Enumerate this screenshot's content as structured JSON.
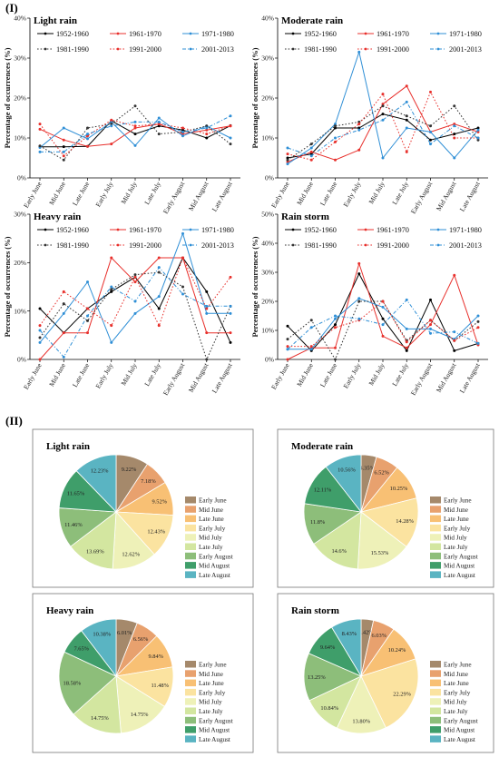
{
  "section_labels": {
    "part1": "(I)",
    "part2": "(II)"
  },
  "chart_data": [
    {
      "type": "line",
      "title": "Light rain",
      "ylabel": "Percentage of occurrences (%)",
      "ylim": [
        0,
        40
      ],
      "yticks": [
        "0%",
        "10%",
        "20%",
        "30%",
        "40%"
      ],
      "categories": [
        "Early June",
        "Mid June",
        "Late June",
        "Early July",
        "Mid July",
        "Late July",
        "Early August",
        "Mid August",
        "Late August"
      ],
      "legend": "top",
      "series": [
        {
          "name": "1952-1960",
          "color": "#000000",
          "dash": "solid",
          "values": [
            7.8,
            7.8,
            7.9,
            14.3,
            11.0,
            13.0,
            12.0,
            10.0,
            13.1
          ]
        },
        {
          "name": "1961-1970",
          "color": "#e8302c",
          "dash": "solid",
          "values": [
            12.2,
            9.5,
            7.9,
            8.5,
            12.5,
            13.5,
            11.0,
            12.0,
            13.0
          ]
        },
        {
          "name": "1971-1980",
          "color": "#2f8fd6",
          "dash": "solid",
          "values": [
            7.6,
            12.5,
            9.8,
            14.0,
            8.1,
            15.0,
            10.5,
            13.0,
            10.0
          ]
        },
        {
          "name": "1981-1990",
          "color": "#333333",
          "dash": "dot",
          "values": [
            8.0,
            4.5,
            12.5,
            13.5,
            18.0,
            11.0,
            11.5,
            13.0,
            8.5
          ]
        },
        {
          "name": "1991-2000",
          "color": "#e8302c",
          "dash": "dot",
          "values": [
            13.5,
            5.5,
            10.5,
            14.5,
            13.0,
            13.5,
            12.5,
            11.0,
            13.0
          ]
        },
        {
          "name": "2001-2013",
          "color": "#2f8fd6",
          "dash": "dashdot",
          "values": [
            6.5,
            6.5,
            11.0,
            13.0,
            14.0,
            14.0,
            11.5,
            12.5,
            15.5
          ]
        }
      ]
    },
    {
      "type": "line",
      "title": "Moderate rain",
      "ylabel": "Percentage of occurrences (%)",
      "ylim": [
        0,
        40
      ],
      "yticks": [
        "0%",
        "10%",
        "20%",
        "30%",
        "40%"
      ],
      "categories": [
        "Early June",
        "Mid June",
        "Late June",
        "Early July",
        "Mid July",
        "Late July",
        "Early August",
        "Mid August",
        "Late August"
      ],
      "legend": "top",
      "series": [
        {
          "name": "1952-1960",
          "color": "#000000",
          "dash": "solid",
          "values": [
            5.0,
            6.0,
            12.5,
            12.5,
            16.0,
            14.5,
            9.5,
            11.0,
            12.5
          ]
        },
        {
          "name": "1961-1970",
          "color": "#e8302c",
          "dash": "solid",
          "values": [
            4.0,
            6.5,
            4.5,
            7.0,
            18.5,
            23.0,
            11.5,
            13.5,
            11.5
          ]
        },
        {
          "name": "1971-1980",
          "color": "#2f8fd6",
          "dash": "solid",
          "values": [
            3.5,
            7.5,
            13.5,
            31.5,
            5.0,
            12.5,
            11.5,
            5.0,
            12.0
          ]
        },
        {
          "name": "1981-1990",
          "color": "#333333",
          "dash": "dot",
          "values": [
            4.5,
            8.5,
            13.0,
            14.0,
            18.0,
            15.5,
            13.0,
            18.0,
            9.5
          ]
        },
        {
          "name": "1991-2000",
          "color": "#e8302c",
          "dash": "dot",
          "values": [
            6.0,
            4.5,
            9.0,
            13.5,
            21.0,
            6.5,
            21.5,
            10.0,
            10.0
          ]
        },
        {
          "name": "2001-2013",
          "color": "#2f8fd6",
          "dash": "dashdot",
          "values": [
            7.5,
            5.5,
            10.0,
            12.0,
            14.5,
            19.0,
            8.5,
            13.0,
            10.0
          ]
        }
      ]
    },
    {
      "type": "line",
      "title": "Heavy rain",
      "ylabel": "Percentage of occurrences (%)",
      "ylim": [
        0,
        30
      ],
      "yticks": [
        "0%",
        "10%",
        "20%",
        "30%"
      ],
      "categories": [
        "Early June",
        "Mid June",
        "Late June",
        "Early July",
        "Mid July",
        "Late July",
        "Early August",
        "Mid August",
        "Late August"
      ],
      "legend": "top",
      "series": [
        {
          "name": "1952-1960",
          "color": "#000000",
          "dash": "solid",
          "values": [
            10.5,
            5.5,
            10.5,
            14.0,
            17.0,
            10.5,
            21.0,
            14.0,
            3.5
          ]
        },
        {
          "name": "1961-1970",
          "color": "#e8302c",
          "dash": "solid",
          "values": [
            0.0,
            5.5,
            5.5,
            21.0,
            16.0,
            21.0,
            21.0,
            5.5,
            5.5
          ]
        },
        {
          "name": "1971-1980",
          "color": "#2f8fd6",
          "dash": "solid",
          "values": [
            3.5,
            9.5,
            16.0,
            3.5,
            9.5,
            13.0,
            26.0,
            9.5,
            9.5
          ]
        },
        {
          "name": "1981-1990",
          "color": "#333333",
          "dash": "dot",
          "values": [
            4.5,
            11.5,
            8.0,
            14.5,
            17.5,
            18.0,
            15.0,
            0.0,
            11.0
          ]
        },
        {
          "name": "1991-2000",
          "color": "#e8302c",
          "dash": "dot",
          "values": [
            7.0,
            14.0,
            10.5,
            7.0,
            17.0,
            7.0,
            21.0,
            10.5,
            17.0
          ]
        },
        {
          "name": "2001-2013",
          "color": "#2f8fd6",
          "dash": "dashdot",
          "values": [
            6.0,
            0.5,
            9.0,
            15.0,
            12.0,
            19.0,
            13.5,
            11.0,
            11.0
          ]
        }
      ]
    },
    {
      "type": "line",
      "title": "Rain storm",
      "ylabel": "Percentage of occurrences (%)",
      "ylim": [
        0,
        50
      ],
      "yticks": [
        "0%",
        "10%",
        "20%",
        "30%",
        "40%",
        "50%"
      ],
      "categories": [
        "Early June",
        "Mid June",
        "Late June",
        "Early July",
        "Mid July",
        "Late July",
        "Early August",
        "Mid August",
        "Late August"
      ],
      "legend": "top",
      "series": [
        {
          "name": "1952-1960",
          "color": "#000000",
          "dash": "solid",
          "values": [
            11.5,
            3.0,
            12.0,
            29.5,
            14.0,
            3.0,
            20.5,
            3.0,
            5.5
          ]
        },
        {
          "name": "1961-1970",
          "color": "#e8302c",
          "dash": "solid",
          "values": [
            0.0,
            4.0,
            4.0,
            33.0,
            8.0,
            4.0,
            12.0,
            29.0,
            5.0
          ]
        },
        {
          "name": "1971-1980",
          "color": "#2f8fd6",
          "dash": "solid",
          "values": [
            3.5,
            3.5,
            14.0,
            21.0,
            18.0,
            10.5,
            10.5,
            7.0,
            15.0
          ]
        },
        {
          "name": "1981-1990",
          "color": "#333333",
          "dash": "dot",
          "values": [
            7.0,
            13.5,
            0.0,
            20.0,
            20.0,
            6.5,
            13.5,
            6.5,
            13.0
          ]
        },
        {
          "name": "1991-2000",
          "color": "#e8302c",
          "dash": "dot",
          "values": [
            4.5,
            4.5,
            11.0,
            13.5,
            20.0,
            6.0,
            13.5,
            6.5,
            11.0
          ]
        },
        {
          "name": "2001-2013",
          "color": "#2f8fd6",
          "dash": "dashdot",
          "values": [
            3.5,
            11.0,
            15.0,
            14.0,
            12.0,
            20.5,
            9.0,
            9.5,
            5.5
          ]
        }
      ]
    },
    {
      "type": "pie",
      "title": "Light rain",
      "categories": [
        "Early June",
        "Mid June",
        "Late June",
        "Early July",
        "Mid July",
        "Late July",
        "Early August",
        "Mid August",
        "Late August"
      ],
      "values": [
        9.22,
        7.18,
        9.52,
        12.43,
        12.62,
        13.69,
        11.46,
        11.65,
        12.23
      ],
      "labels": [
        "9.22%",
        "7.18%",
        "9.52%",
        "12.43%",
        "12.62%",
        "13.69%",
        "11.46%",
        "11.65%",
        "12.23%"
      ],
      "colors": [
        "#a5896b",
        "#e8a16e",
        "#f8c074",
        "#fbe3a0",
        "#eef1b8",
        "#d3e6a0",
        "#8dbe7a",
        "#3f9e6a",
        "#5ab4c2"
      ],
      "legend": "right"
    },
    {
      "type": "pie",
      "title": "Moderate rain",
      "categories": [
        "Early June",
        "Mid June",
        "Late June",
        "Early July",
        "Mid July",
        "Late July",
        "Early August",
        "Mid August",
        "Late August"
      ],
      "values": [
        4.35,
        6.52,
        10.25,
        14.28,
        15.53,
        14.6,
        11.8,
        12.11,
        10.56
      ],
      "labels": [
        "4.35%",
        "6.52%",
        "10.25%",
        "14.28%",
        "15.53%",
        "14.6%",
        "11.8%",
        "12.11%",
        "10.56%"
      ],
      "colors": [
        "#a5896b",
        "#e8a16e",
        "#f8c074",
        "#fbe3a0",
        "#eef1b8",
        "#d3e6a0",
        "#8dbe7a",
        "#3f9e6a",
        "#5ab4c2"
      ],
      "legend": "right"
    },
    {
      "type": "pie",
      "title": "Heavy rain",
      "categories": [
        "Early June",
        "Mid June",
        "Late June",
        "Early July",
        "Mid July",
        "Late July",
        "Early August",
        "Mid August",
        "Late August"
      ],
      "values": [
        6.01,
        6.56,
        9.84,
        11.48,
        14.75,
        14.75,
        18.58,
        7.65,
        10.38
      ],
      "labels": [
        "6.01%",
        "6.56%",
        "9.84%",
        "11.48%",
        "14.75%",
        "14.75%",
        "18.58%",
        "7.65%",
        "10.38%"
      ],
      "colors": [
        "#a5896b",
        "#e8a16e",
        "#f8c074",
        "#fbe3a0",
        "#eef1b8",
        "#d3e6a0",
        "#8dbe7a",
        "#3f9e6a",
        "#5ab4c2"
      ],
      "legend": "right"
    },
    {
      "type": "pie",
      "title": "Rain storm",
      "categories": [
        "Early June",
        "Mid June",
        "Late June",
        "Early July",
        "Mid July",
        "Late July",
        "Early August",
        "Mid August",
        "Late August"
      ],
      "values": [
        3.42,
        6.03,
        10.24,
        22.29,
        13.8,
        10.84,
        13.25,
        9.64,
        8.43
      ],
      "labels": [
        "3.42%",
        "6.03%",
        "10.24%",
        "22.29%",
        "13.80%",
        "10.84%",
        "13.25%",
        "9.64%",
        "8.43%"
      ],
      "colors": [
        "#a5896b",
        "#e8a16e",
        "#f8c074",
        "#fbe3a0",
        "#eef1b8",
        "#d3e6a0",
        "#8dbe7a",
        "#3f9e6a",
        "#5ab4c2"
      ],
      "legend": "right"
    }
  ]
}
